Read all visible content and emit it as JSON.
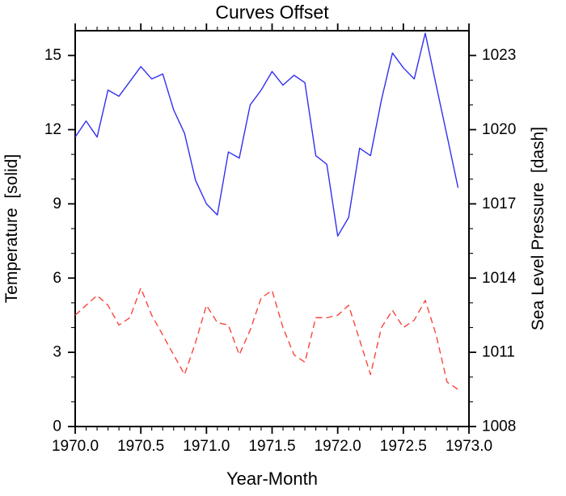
{
  "page": {
    "background": "#ffffff"
  },
  "chart_data": {
    "type": "line",
    "title": "Curves Offset",
    "xlabel": "Year-Month",
    "ylabel_left": "Temperature  [solid]",
    "ylabel_right": "Sea Level Pressure  [dash]",
    "xlim": [
      1970.0,
      1973.0
    ],
    "ylim_left": [
      0,
      16
    ],
    "ylim_right": [
      1008,
      1024
    ],
    "grid": false,
    "legend_position": "none",
    "x_major_ticks": [
      1970.0,
      1970.5,
      1971.0,
      1971.5,
      1972.0,
      1972.5,
      1973.0
    ],
    "x_tick_labels": [
      "1970.0",
      "1970.5",
      "1971.0",
      "1971.5",
      "1972.0",
      "1972.5",
      "1973.0"
    ],
    "x_minor_interval_years": 0.0833,
    "y_major_ticks_left": [
      0,
      3,
      6,
      9,
      12,
      15
    ],
    "y_tick_labels_left": [
      "0",
      "3",
      "6",
      "9",
      "12",
      "15"
    ],
    "y_minor_interval_left": 1,
    "y_major_ticks_right": [
      1008,
      1011,
      1014,
      1017,
      1020,
      1023
    ],
    "y_tick_labels_right": [
      "1008",
      "1011",
      "1014",
      "1017",
      "1020",
      "1023"
    ],
    "x": [
      1970.0,
      1970.083,
      1970.167,
      1970.25,
      1970.333,
      1970.417,
      1970.5,
      1970.583,
      1970.667,
      1970.75,
      1970.833,
      1970.917,
      1971.0,
      1971.083,
      1971.167,
      1971.25,
      1971.333,
      1971.417,
      1971.5,
      1971.583,
      1971.667,
      1971.75,
      1971.833,
      1971.917,
      1972.0,
      1972.083,
      1972.167,
      1972.25,
      1972.333,
      1972.417,
      1972.5,
      1972.583,
      1972.667,
      1972.75,
      1972.833,
      1972.917
    ],
    "series": [
      {
        "name": "Temperature",
        "axis": "left",
        "line_style": "solid",
        "color": "#3030f0",
        "values": [
          11.7,
          12.35,
          11.7,
          13.6,
          13.35,
          13.95,
          14.55,
          14.05,
          14.25,
          12.8,
          11.85,
          9.95,
          9.0,
          8.55,
          11.1,
          10.85,
          13.0,
          13.6,
          14.35,
          13.8,
          14.2,
          13.9,
          10.95,
          10.6,
          7.7,
          8.45,
          11.25,
          10.95,
          13.2,
          15.1,
          14.5,
          14.05,
          15.9,
          13.8,
          11.75,
          9.65
        ]
      },
      {
        "name": "Sea Level Pressure",
        "axis": "right",
        "line_style": "dash",
        "color": "#f8463e",
        "values": [
          1012.5,
          1012.9,
          1013.3,
          1012.9,
          1012.1,
          1012.4,
          1013.6,
          1012.5,
          1011.7,
          1010.9,
          1010.1,
          1011.4,
          1012.9,
          1012.2,
          1012.1,
          1010.9,
          1011.9,
          1013.2,
          1013.5,
          1012.0,
          1010.9,
          1010.6,
          1012.4,
          1012.4,
          1012.5,
          1012.9,
          1011.5,
          1010.1,
          1012.0,
          1012.7,
          1012.0,
          1012.3,
          1013.1,
          1011.7,
          1009.8,
          1009.5
        ]
      }
    ],
    "frame_color": "#000000",
    "tick_color": "#000000"
  }
}
